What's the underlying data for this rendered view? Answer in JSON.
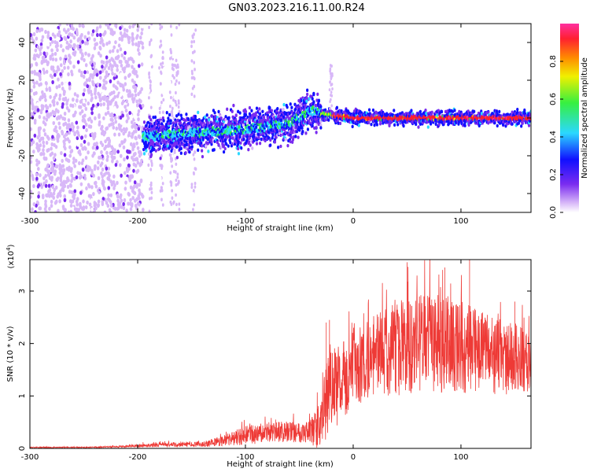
{
  "title": "GN03.2023.216.11.00.R24",
  "colors": {
    "snr_line": "#ee3a36",
    "spectrum_hot": "#ff2030",
    "spectrum_mid": "#2bd8ff",
    "spectrum_low": "#7a2cf0"
  },
  "chart_data": [
    {
      "type": "heatmap",
      "title": "GN03.2023.216.11.00.R24",
      "xlabel": "Height of straight line (km)",
      "ylabel": "Frequency (Hz)",
      "xlim": [
        -300,
        165
      ],
      "ylim": [
        -50,
        50
      ],
      "x_ticks": [
        "-300",
        "-200",
        "-100",
        "0",
        "100"
      ],
      "y_ticks": [
        "-40",
        "-20",
        "0",
        "20",
        "40"
      ],
      "colorbar": {
        "label": "Normalized spectral amplitude",
        "range": [
          0.0,
          1.0
        ],
        "ticks": [
          "0.0",
          "0.2",
          "0.4",
          "0.6",
          "0.8"
        ],
        "colormap": [
          "#ffffff",
          "#d8b8f8",
          "#7a2cf0",
          "#1010ff",
          "#2bd8ff",
          "#36f040",
          "#f0f000",
          "#ff8a00",
          "#ff2030",
          "#ff30a0"
        ]
      },
      "description_features": {
        "noise_region_x": [
          -300,
          -195
        ],
        "signal_start_x": -195,
        "signal_center_hz_at_x": [
          [
            -195,
            -10
          ],
          [
            -150,
            -8
          ],
          [
            -100,
            -6
          ],
          [
            -60,
            -3
          ],
          [
            -40,
            4
          ],
          [
            -25,
            2
          ],
          [
            0,
            0
          ],
          [
            50,
            0
          ],
          [
            165,
            0
          ]
        ]
      }
    },
    {
      "type": "line",
      "xlabel": "Height of straight line (km)",
      "ylabel": "SNR (10 * v/v)",
      "y_multiplier": "(x10^4)",
      "xlim": [
        -300,
        165
      ],
      "ylim": [
        0,
        3.6
      ],
      "x_ticks": [
        "-300",
        "-200",
        "-100",
        "0",
        "100"
      ],
      "y_ticks": [
        "0",
        "1",
        "2",
        "3"
      ],
      "series": [
        {
          "x": [
            -300,
            -250,
            -220,
            -200,
            -180,
            -160,
            -140,
            -120,
            -100,
            -80,
            -60,
            -40,
            -30,
            -25,
            -20,
            -10,
            0,
            20,
            40,
            60,
            80,
            100,
            120,
            140,
            165
          ],
          "mean": [
            0.02,
            0.02,
            0.03,
            0.05,
            0.07,
            0.07,
            0.08,
            0.15,
            0.25,
            0.3,
            0.32,
            0.32,
            0.4,
            0.85,
            1.1,
            1.3,
            1.5,
            1.75,
            1.9,
            2.0,
            2.0,
            1.95,
            1.85,
            1.75,
            1.65
          ],
          "spread": [
            0.01,
            0.01,
            0.02,
            0.03,
            0.05,
            0.05,
            0.06,
            0.12,
            0.2,
            0.22,
            0.22,
            0.25,
            0.6,
            0.9,
            0.9,
            0.8,
            0.8,
            0.9,
            1.0,
            1.05,
            1.05,
            1.0,
            0.9,
            0.8,
            0.7
          ],
          "peaks": [
            [
              -195,
              0.12
            ],
            [
              -160,
              0.13
            ],
            [
              -72,
              0.55
            ],
            [
              -25,
              2.4
            ],
            [
              -22,
              2.45
            ],
            [
              50,
              3.55
            ],
            [
              85,
              3.45
            ],
            [
              108,
              3.6
            ],
            [
              150,
              2.8
            ]
          ]
        }
      ]
    }
  ]
}
